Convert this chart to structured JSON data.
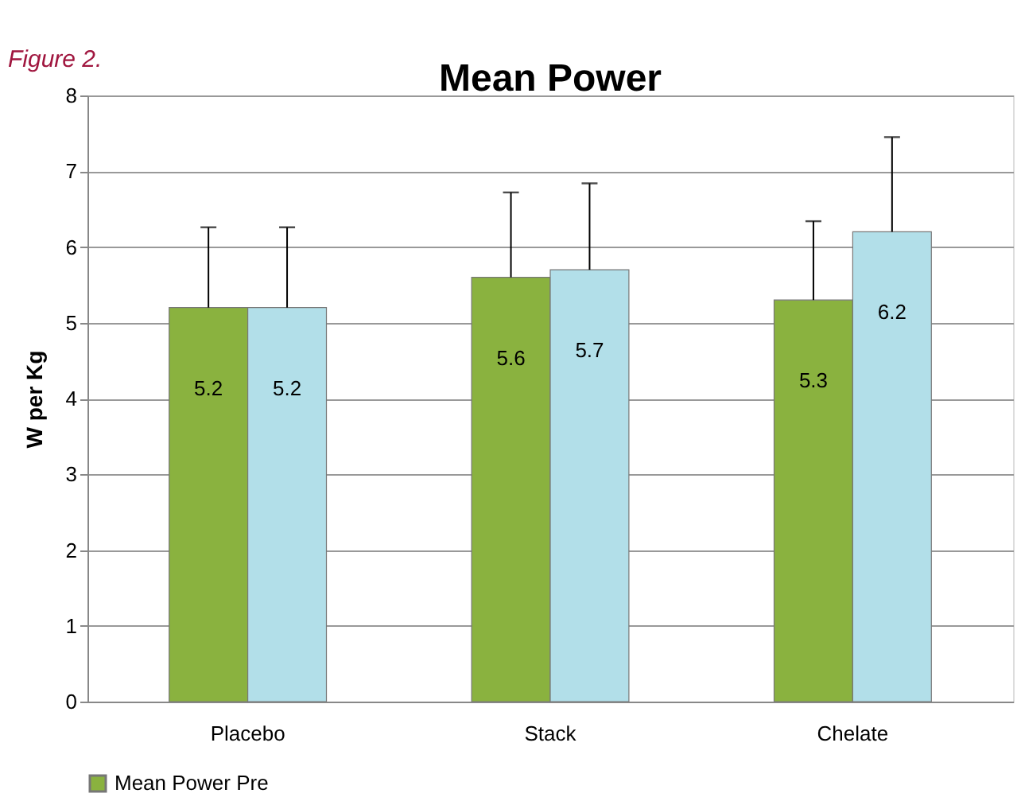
{
  "chart_data": {
    "type": "bar",
    "title": "Mean Power",
    "ylabel": "W per Kg",
    "categories": [
      "Placebo",
      "Stack",
      "Chelate"
    ],
    "series": [
      {
        "name": "Mean Power Pre",
        "color": "#8ab23f",
        "values": [
          5.2,
          5.6,
          5.3
        ],
        "errors": [
          [
            5.2,
            6.26
          ],
          [
            5.6,
            6.72
          ],
          [
            5.3,
            6.34
          ]
        ]
      },
      {
        "color": "#b2dfe9",
        "values": [
          5.2,
          5.7,
          6.2
        ],
        "errors": [
          [
            5.2,
            6.26
          ],
          [
            5.7,
            6.84
          ],
          [
            6.2,
            7.45
          ]
        ]
      }
    ],
    "ylim": [
      0,
      8
    ],
    "yticks": [
      0,
      1,
      2,
      3,
      4,
      5,
      6,
      7,
      8
    ],
    "grid": "y",
    "legend": "bottom",
    "data_labels": true,
    "annotations": [
      "Figure 2."
    ]
  }
}
